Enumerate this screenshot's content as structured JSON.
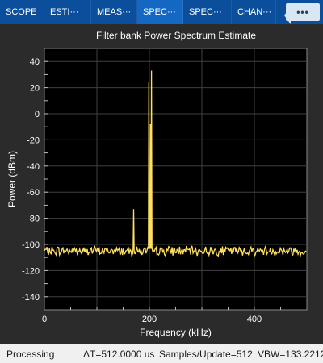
{
  "tabs": [
    {
      "label": "SCOPE",
      "active": false
    },
    {
      "label": "ESTI···",
      "active": false
    },
    {
      "label": "MEAS···",
      "active": false
    },
    {
      "label": "SPEC···",
      "active": true
    },
    {
      "label": "SPEC···",
      "active": false
    },
    {
      "label": "CHAN···",
      "active": false
    }
  ],
  "more_label": "•••",
  "status": {
    "state": "Processing",
    "delta_t": "ΔT=512.0000 us",
    "samples": "Samples/Update=512",
    "vbw": "VBW=133.2212"
  },
  "chart_data": {
    "type": "line",
    "title": "Filter bank Power Spectrum Estimate",
    "xlabel": "Frequency (kHz)",
    "ylabel": "Power (dBm)",
    "xlim": [
      0,
      500
    ],
    "ylim": [
      -150,
      50
    ],
    "xticks": [
      0,
      200,
      400
    ],
    "yticks": [
      40,
      20,
      0,
      -20,
      -40,
      -60,
      -80,
      -100,
      -120,
      -140
    ],
    "grid": true,
    "colors": {
      "trace": "#ffdf5e",
      "background": "#000000",
      "grid": "#404040",
      "text": "#ffffff"
    },
    "noise_floor": -105,
    "peaks": [
      {
        "x": 170,
        "y": -73
      },
      {
        "x": 199,
        "y": 24
      },
      {
        "x": 202,
        "y": -8
      },
      {
        "x": 204,
        "y": 33
      }
    ]
  }
}
